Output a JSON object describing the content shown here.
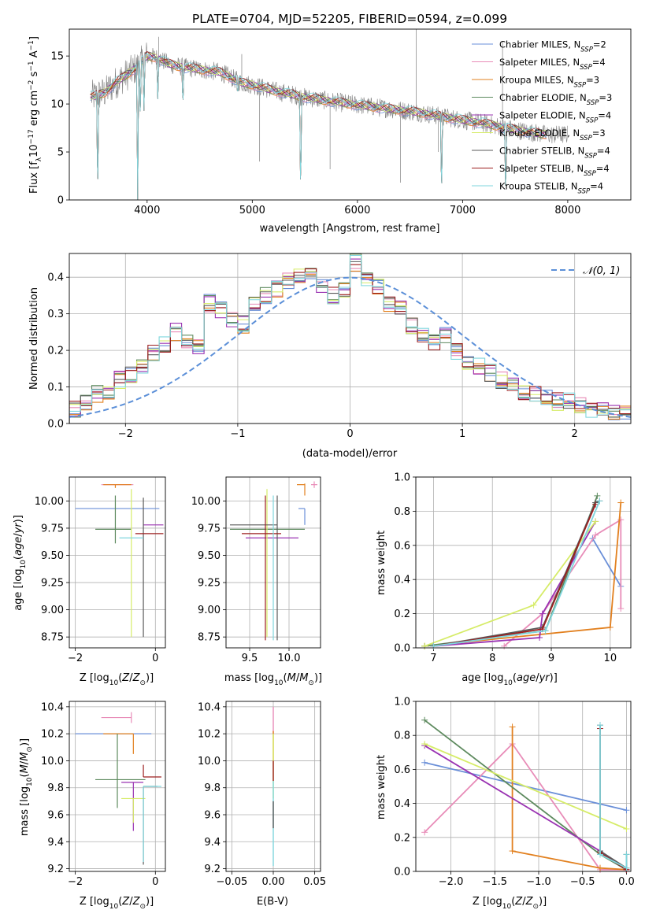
{
  "figure_title": "PLATE=0704, MJD=52205, FIBERID=0594, z=0.099",
  "colors": {
    "c1": "#6a8fd8",
    "c2": "#e88cb8",
    "c3": "#e2801f",
    "c4": "#5d8a5e",
    "c5": "#9a33b2",
    "c6": "#d6ec68",
    "c7": "#5a5a5a",
    "c8": "#9c1e1e",
    "c9": "#7fd6dd",
    "data": "#808080",
    "normal": "#5b8fd8",
    "grid": "#b0b0b0"
  },
  "chart_data": [
    {
      "id": "spectrum",
      "type": "line",
      "title": "PLATE=0704, MJD=52205, FIBERID=0594, z=0.099",
      "xlabel": "wavelength [Angstrom, rest frame]",
      "ylabel": "Flux [fλ10⁻¹⁷ erg cm⁻² s⁻¹ A⁻¹]",
      "xlim": [
        3260,
        8600
      ],
      "ylim": [
        0,
        17.8
      ],
      "xticks": [
        4000,
        5000,
        6000,
        7000,
        8000
      ],
      "yticks": [
        0,
        5,
        10,
        15
      ],
      "grid": false,
      "legend_position": "upper right",
      "series": [
        {
          "name": "Chabrier MILES, NSSP=2",
          "color": "#6a8fd8"
        },
        {
          "name": "Salpeter MILES, NSSP=4",
          "color": "#e88cb8"
        },
        {
          "name": "Kroupa MILES, NSSP=3",
          "color": "#e2801f"
        },
        {
          "name": "Chabrier ELODIE, NSSP=3",
          "color": "#5d8a5e"
        },
        {
          "name": "Salpeter ELODIE, NSSP=4",
          "color": "#9a33b2"
        },
        {
          "name": "Kroupa ELODIE, NSSP=3",
          "color": "#d6ec68"
        },
        {
          "name": "Chabrier STELIB, NSSP=4",
          "color": "#5a5a5a"
        },
        {
          "name": "Salpeter STELIB, NSSP=4",
          "color": "#9c1e1e"
        },
        {
          "name": "Kroupa STELIB, NSSP=4",
          "color": "#7fd6dd"
        }
      ],
      "continuum": {
        "x": [
          3500,
          3600,
          3700,
          3800,
          3900,
          4000,
          4100,
          4200,
          4300,
          4500,
          4700,
          4900,
          5000,
          5200,
          5500,
          5800,
          6000,
          6300,
          6600,
          6900,
          7200,
          7500,
          7800
        ],
        "y": [
          10.8,
          11.2,
          12.2,
          13.0,
          13.8,
          15.0,
          14.8,
          14.2,
          13.9,
          13.6,
          13.3,
          12.2,
          12.0,
          11.4,
          10.7,
          10.2,
          9.9,
          9.5,
          9.1,
          8.5,
          8.0,
          7.3,
          6.8
        ]
      },
      "dips": [
        {
          "x": 3530,
          "y": 0
        },
        {
          "x": 3910,
          "y": 0
        },
        {
          "x": 3935,
          "y": 8.7
        },
        {
          "x": 3970,
          "y": 9.3
        },
        {
          "x": 4102,
          "y": 10.5
        },
        {
          "x": 4340,
          "y": 9.6
        },
        {
          "x": 4861,
          "y": 10.9
        },
        {
          "x": 5460,
          "y": 0
        },
        {
          "x": 6800,
          "y": 0
        },
        {
          "x": 7410,
          "y": 0
        }
      ]
    },
    {
      "id": "residuals",
      "type": "line",
      "xlabel": "(data-model)/error",
      "ylabel": "Normed distribution",
      "xlim": [
        -2.5,
        2.5
      ],
      "ylim": [
        0,
        0.465
      ],
      "xticks": [
        -2,
        -1,
        0,
        1,
        2
      ],
      "yticks": [
        0.0,
        0.1,
        0.2,
        0.3,
        0.4
      ],
      "grid": true,
      "legend_position": "upper right",
      "legend": "N(0,1)",
      "bins": [
        -2.5,
        -2.4,
        -2.3,
        -2.2,
        -2.1,
        -2.0,
        -1.9,
        -1.8,
        -1.7,
        -1.6,
        -1.5,
        -1.4,
        -1.3,
        -1.2,
        -1.1,
        -1.0,
        -0.9,
        -0.8,
        -0.7,
        -0.6,
        -0.5,
        -0.4,
        -0.3,
        -0.2,
        -0.1,
        0.0,
        0.1,
        0.2,
        0.3,
        0.4,
        0.5,
        0.6,
        0.7,
        0.8,
        0.9,
        1.0,
        1.1,
        1.2,
        1.3,
        1.4,
        1.5,
        1.6,
        1.7,
        1.8,
        1.9,
        2.0,
        2.1,
        2.2,
        2.3,
        2.4,
        2.5
      ],
      "reference": [
        0.04,
        0.06,
        0.08,
        0.09,
        0.12,
        0.13,
        0.16,
        0.19,
        0.22,
        0.25,
        0.22,
        0.21,
        0.33,
        0.31,
        0.28,
        0.27,
        0.33,
        0.35,
        0.37,
        0.39,
        0.41,
        0.4,
        0.38,
        0.35,
        0.36,
        0.44,
        0.4,
        0.37,
        0.33,
        0.31,
        0.27,
        0.24,
        0.22,
        0.24,
        0.2,
        0.17,
        0.16,
        0.14,
        0.12,
        0.11,
        0.09,
        0.08,
        0.07,
        0.06,
        0.06,
        0.05,
        0.04,
        0.04,
        0.03,
        0.03
      ]
    },
    {
      "id": "z-age",
      "type": "scatter",
      "xlabel": "Z [log10(Z/Z⊙)]",
      "ylabel": "age  [log10(age/yr)]",
      "xlim": [
        -2.15,
        0.25
      ],
      "ylim": [
        8.65,
        10.22
      ],
      "xticks": [
        -2,
        0
      ],
      "yticks": [
        8.75,
        9.0,
        9.25,
        9.5,
        9.75,
        10.0
      ],
      "grid": true,
      "crosses": [
        {
          "x": -0.9,
          "y": 9.93,
          "xl": -2.0,
          "xr": 0.1,
          "yb": 9.93,
          "yt": 9.93,
          "color": "#6a8fd8"
        },
        {
          "x": -0.95,
          "y": 10.15,
          "xl": -1.35,
          "xr": -0.55,
          "yb": 10.15,
          "yt": 10.15,
          "color": "#e88cb8"
        },
        {
          "x": -1.0,
          "y": 10.15,
          "xl": -1.3,
          "xr": -0.6,
          "yb": 10.12,
          "yt": 10.15,
          "color": "#e2801f"
        },
        {
          "x": -1.0,
          "y": 9.74,
          "xl": -1.5,
          "xr": -0.6,
          "yb": 9.61,
          "yt": 10.05,
          "color": "#5d8a5e"
        },
        {
          "x": -0.3,
          "y": 9.78,
          "xl": -0.3,
          "xr": 0.2,
          "yb": 9.78,
          "yt": 9.78,
          "color": "#9a33b2"
        },
        {
          "x": -0.6,
          "y": 9.7,
          "xl": -0.6,
          "xr": -0.6,
          "yb": 8.75,
          "yt": 10.11,
          "color": "#d6ec68"
        },
        {
          "x": -0.3,
          "y": 9.7,
          "xl": -0.3,
          "xr": -0.3,
          "yb": 8.75,
          "yt": 10.03,
          "color": "#5a5a5a"
        },
        {
          "x": -0.5,
          "y": 9.7,
          "xl": -0.5,
          "xr": 0.2,
          "yb": 9.7,
          "yt": 9.7,
          "color": "#9c1e1e"
        },
        {
          "x": -0.4,
          "y": 9.66,
          "xl": -0.9,
          "xr": -0.3,
          "yb": 9.66,
          "yt": 9.66,
          "color": "#7fd6dd"
        }
      ]
    },
    {
      "id": "mass-age",
      "type": "scatter",
      "xlabel": "mass [log10(M/M⊙)]",
      "ylabel": "",
      "xlim": [
        9.2,
        10.4
      ],
      "ylim": [
        8.65,
        10.22
      ],
      "xticks": [
        9.5,
        10.0
      ],
      "yticks": [
        8.75,
        9.0,
        9.25,
        9.5,
        9.75,
        10.0
      ],
      "grid": true,
      "crosses": [
        {
          "x": 10.2,
          "y": 9.93,
          "xl": 10.12,
          "xr": 10.2,
          "yb": 9.78,
          "yt": 9.93,
          "color": "#6a8fd8"
        },
        {
          "x": 10.32,
          "y": 10.15,
          "xl": 10.28,
          "xr": 10.36,
          "yb": 10.12,
          "yt": 10.18,
          "color": "#e88cb8"
        },
        {
          "x": 10.2,
          "y": 10.15,
          "xl": 10.1,
          "xr": 10.2,
          "yb": 10.05,
          "yt": 10.16,
          "color": "#e2801f"
        },
        {
          "x": 9.86,
          "y": 9.74,
          "xl": 9.25,
          "xr": 10.2,
          "yb": 9.74,
          "yt": 9.74,
          "color": "#5d8a5e"
        },
        {
          "x": 9.83,
          "y": 9.66,
          "xl": 9.45,
          "xr": 10.12,
          "yb": 9.66,
          "yt": 9.66,
          "color": "#9a33b2"
        },
        {
          "x": 9.72,
          "y": 9.7,
          "xl": 9.72,
          "xr": 9.72,
          "yb": 8.75,
          "yt": 10.11,
          "color": "#d6ec68"
        },
        {
          "x": 9.85,
          "y": 9.78,
          "xl": 9.25,
          "xr": 9.85,
          "yb": 8.72,
          "yt": 10.05,
          "color": "#5a5a5a"
        },
        {
          "x": 9.7,
          "y": 9.7,
          "xl": 9.4,
          "xr": 9.9,
          "yb": 8.72,
          "yt": 10.05,
          "color": "#9c1e1e"
        },
        {
          "x": 9.8,
          "y": 9.7,
          "xl": 9.8,
          "xr": 9.8,
          "yb": 8.72,
          "yt": 10.05,
          "color": "#7fd6dd"
        }
      ]
    },
    {
      "id": "age-weight",
      "type": "line",
      "xlabel": "age  [log10(age/yr)]",
      "ylabel": "mass weight",
      "xlim": [
        6.7,
        10.35
      ],
      "ylim": [
        0,
        1.0
      ],
      "xticks": [
        7,
        8,
        9,
        10
      ],
      "yticks": [
        0.0,
        0.2,
        0.4,
        0.6,
        0.8,
        1.0
      ],
      "grid": true,
      "series": [
        {
          "name": "Chabrier MILES, NSSP=2",
          "color": "#6a8fd8",
          "x": [
            9.7,
            10.18
          ],
          "y": [
            0.64,
            0.36
          ]
        },
        {
          "name": "Salpeter MILES, NSSP=4",
          "color": "#e88cb8",
          "x": [
            8.2,
            8.85,
            9.75,
            10.18,
            10.18
          ],
          "y": [
            0.01,
            0.2,
            0.66,
            0.75,
            0.23
          ]
        },
        {
          "name": "Kroupa MILES, NSSP=3",
          "color": "#e2801f",
          "x": [
            6.85,
            10.0,
            10.18
          ],
          "y": [
            0.01,
            0.12,
            0.85
          ]
        },
        {
          "name": "Chabrier ELODIE, NSSP=3",
          "color": "#5d8a5e",
          "x": [
            6.85,
            8.9,
            9.78
          ],
          "y": [
            0.01,
            0.1,
            0.89
          ]
        },
        {
          "name": "Salpeter ELODIE, NSSP=4",
          "color": "#9a33b2",
          "x": [
            7.0,
            8.8,
            8.85,
            9.75
          ],
          "y": [
            0.01,
            0.06,
            0.2,
            0.74
          ]
        },
        {
          "name": "Kroupa ELODIE, NSSP=3",
          "color": "#d6ec68",
          "x": [
            6.85,
            8.7,
            9.75
          ],
          "y": [
            0.01,
            0.25,
            0.74
          ]
        },
        {
          "name": "Chabrier STELIB, NSSP=4",
          "color": "#5a5a5a",
          "x": [
            7.0,
            8.85,
            9.75,
            9.82
          ],
          "y": [
            0.01,
            0.12,
            0.85,
            0.86
          ]
        },
        {
          "name": "Salpeter STELIB, NSSP=4",
          "color": "#9c1e1e",
          "x": [
            7.0,
            8.85,
            9.75
          ],
          "y": [
            0.01,
            0.11,
            0.84
          ]
        },
        {
          "name": "Kroupa STELIB, NSSP=4",
          "color": "#7fd6dd",
          "x": [
            7.0,
            8.9,
            9.82
          ],
          "y": [
            0.01,
            0.1,
            0.86
          ]
        }
      ]
    },
    {
      "id": "z-mass",
      "type": "scatter",
      "xlabel": "Z [log10(Z/Z⊙)]",
      "ylabel": "mass [log10(M/M⊙)]",
      "xlim": [
        -2.15,
        0.25
      ],
      "ylim": [
        9.18,
        10.44
      ],
      "xticks": [
        -2,
        0
      ],
      "yticks": [
        9.2,
        9.4,
        9.6,
        9.8,
        10.0,
        10.2,
        10.4
      ],
      "grid": true,
      "crosses": [
        {
          "x": -0.45,
          "y": 10.2,
          "xl": -2.0,
          "xr": -0.1,
          "yb": 10.2,
          "yt": 10.2,
          "color": "#6a8fd8"
        },
        {
          "x": -0.6,
          "y": 10.32,
          "xl": -1.35,
          "xr": -0.6,
          "yb": 10.28,
          "yt": 10.36,
          "color": "#e88cb8"
        },
        {
          "x": -0.55,
          "y": 10.2,
          "xl": -1.3,
          "xr": -0.55,
          "yb": 10.05,
          "yt": 10.2,
          "color": "#e2801f"
        },
        {
          "x": -0.95,
          "y": 9.86,
          "xl": -1.5,
          "xr": -0.25,
          "yb": 9.65,
          "yt": 10.2,
          "color": "#5d8a5e"
        },
        {
          "x": -0.55,
          "y": 9.84,
          "xl": -0.85,
          "xr": -0.3,
          "yb": 9.48,
          "yt": 9.84,
          "color": "#9a33b2"
        },
        {
          "x": -0.55,
          "y": 9.72,
          "xl": -0.85,
          "xr": -0.25,
          "yb": 9.54,
          "yt": 9.72,
          "color": "#d6ec68"
        },
        {
          "x": -0.3,
          "y": 9.81,
          "xl": -0.3,
          "xr": 0.05,
          "yb": 9.23,
          "yt": 9.81,
          "color": "#5a5a5a"
        },
        {
          "x": -0.3,
          "y": 9.88,
          "xl": -0.3,
          "xr": 0.15,
          "yb": 9.88,
          "yt": 9.97,
          "color": "#9c1e1e"
        },
        {
          "x": -0.3,
          "y": 9.81,
          "xl": -0.3,
          "xr": 0.15,
          "yb": 9.25,
          "yt": 9.81,
          "color": "#7fd6dd"
        }
      ]
    },
    {
      "id": "ebv-mass",
      "type": "scatter",
      "xlabel": "E(B-V)",
      "ylabel": "",
      "xlim": [
        -0.057,
        0.057
      ],
      "ylim": [
        9.18,
        10.44
      ],
      "xticks": [
        -0.05,
        0.0,
        0.05
      ],
      "yticks": [
        9.2,
        9.4,
        9.6,
        9.8,
        10.0,
        10.2,
        10.4
      ],
      "grid": true,
      "segments": [
        {
          "x": 0.0,
          "yb": 10.2,
          "yt": 10.4,
          "color": "#e88cb8"
        },
        {
          "x": 0.0,
          "yb": 10.0,
          "yt": 10.22,
          "color": "#e2801f"
        },
        {
          "x": 0.0,
          "yb": 9.72,
          "yt": 10.2,
          "color": "#d6ec68"
        },
        {
          "x": 0.0,
          "yb": 9.85,
          "yt": 10.0,
          "color": "#9c1e1e"
        },
        {
          "x": 0.0,
          "yb": 9.22,
          "yt": 9.85,
          "color": "#7fd6dd"
        },
        {
          "x": 0.0,
          "yb": 9.5,
          "yt": 9.7,
          "color": "#5a5a5a"
        }
      ]
    },
    {
      "id": "z-weight",
      "type": "line",
      "xlabel": "Z [log10(Z/Z⊙)]",
      "ylabel": "mass weight",
      "xlim": [
        -2.4,
        0.05
      ],
      "ylim": [
        0,
        1.0
      ],
      "xticks": [
        -2.0,
        -1.5,
        -1.0,
        -0.5,
        0.0
      ],
      "yticks": [
        0.0,
        0.2,
        0.4,
        0.6,
        0.8,
        1.0
      ],
      "grid": true,
      "series": [
        {
          "name": "Chabrier MILES, NSSP=2",
          "color": "#6a8fd8",
          "x": [
            -2.3,
            0.0
          ],
          "y": [
            0.64,
            0.36
          ]
        },
        {
          "name": "Salpeter MILES, NSSP=4",
          "color": "#e88cb8",
          "x": [
            -2.3,
            -1.3,
            -0.3,
            0.0
          ],
          "y": [
            0.23,
            0.75,
            0.01,
            0.01
          ]
        },
        {
          "name": "Kroupa MILES, NSSP=3",
          "color": "#e2801f",
          "x": [
            -1.3,
            -1.3,
            -0.3,
            0.0
          ],
          "y": [
            0.85,
            0.12,
            0.02,
            0.01
          ]
        },
        {
          "name": "Chabrier ELODIE, NSSP=3",
          "color": "#5d8a5e",
          "x": [
            -2.3,
            -0.3,
            0.0
          ],
          "y": [
            0.89,
            0.1,
            0.01
          ]
        },
        {
          "name": "Salpeter ELODIE, NSSP=4",
          "color": "#9a33b2",
          "x": [
            -2.3,
            -0.3,
            0.0
          ],
          "y": [
            0.74,
            0.12,
            0.01
          ]
        },
        {
          "name": "Kroupa ELODIE, NSSP=3",
          "color": "#d6ec68",
          "x": [
            -2.3,
            0.0
          ],
          "y": [
            0.75,
            0.25
          ]
        },
        {
          "name": "Chabrier STELIB, NSSP=4",
          "color": "#5a5a5a",
          "x": [
            -0.3,
            -0.3,
            0.0,
            0.0
          ],
          "y": [
            0.86,
            0.12,
            0.02,
            0.1
          ]
        },
        {
          "name": "Salpeter STELIB, NSSP=4",
          "color": "#9c1e1e",
          "x": [
            -0.3,
            -0.3,
            0.0
          ],
          "y": [
            0.84,
            0.11,
            0.01
          ]
        },
        {
          "name": "Kroupa STELIB, NSSP=4",
          "color": "#7fd6dd",
          "x": [
            -0.3,
            -0.3,
            0.0,
            0.0
          ],
          "y": [
            0.86,
            0.1,
            0.02,
            0.1
          ]
        }
      ]
    }
  ]
}
